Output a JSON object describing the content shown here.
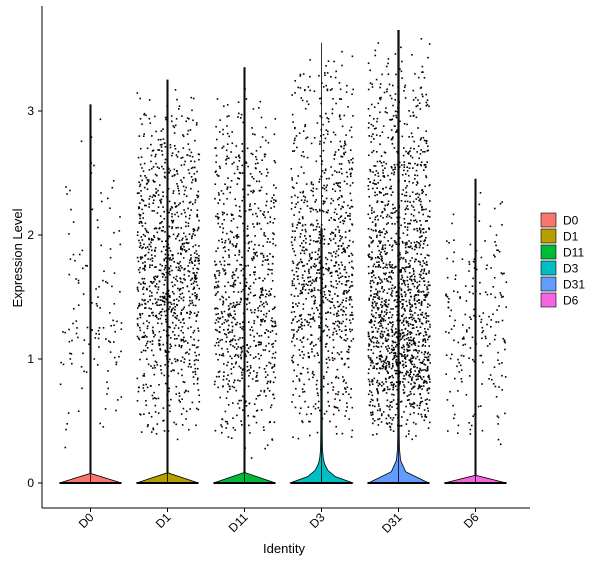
{
  "chart_data": {
    "type": "violin",
    "xlabel": "Identity",
    "ylabel": "Expression Level",
    "ylim": [
      -0.2,
      3.75
    ],
    "yticks": [
      0,
      1,
      2,
      3
    ],
    "categories": [
      "D0",
      "D1",
      "D11",
      "D3",
      "D31",
      "D6"
    ],
    "legend": {
      "position": "right",
      "title": ""
    },
    "series": [
      {
        "name": "D0",
        "color": "#F8766D",
        "max": 3.05,
        "violin_max": 3.05,
        "zero_bulge": 0.02,
        "points": 130,
        "pmin": 0.2,
        "pmax": 3.05,
        "pmode": 1.2
      },
      {
        "name": "D1",
        "color": "#B79F00",
        "max": 3.25,
        "violin_max": 3.25,
        "zero_bulge": 0.02,
        "points": 1000,
        "pmin": 0.28,
        "pmax": 3.25,
        "pmode": 1.7
      },
      {
        "name": "D11",
        "color": "#00BA38",
        "max": 3.35,
        "violin_max": 3.35,
        "zero_bulge": 0.02,
        "points": 800,
        "pmin": 0.18,
        "pmax": 3.35,
        "pmode": 1.3
      },
      {
        "name": "D3",
        "color": "#00BFC4",
        "max": 3.55,
        "violin_max": 2.05,
        "zero_bulge": 1.0,
        "points": 950,
        "pmin": 0.3,
        "pmax": 3.55,
        "pmode": 1.6
      },
      {
        "name": "D31",
        "color": "#619CFF",
        "max": 3.65,
        "violin_max": 3.65,
        "zero_bulge": 0.95,
        "points": 1600,
        "pmin": 0.35,
        "pmax": 3.65,
        "pmode": 0.9
      },
      {
        "name": "D6",
        "color": "#F564E3",
        "max": 2.45,
        "violin_max": 2.45,
        "zero_bulge": 0.02,
        "points": 200,
        "pmin": 0.25,
        "pmax": 2.45,
        "pmode": 1.1
      }
    ]
  }
}
